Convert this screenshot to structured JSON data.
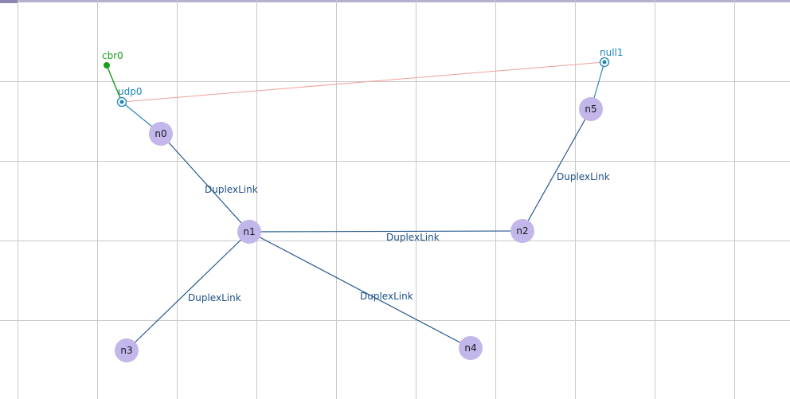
{
  "nodes": [
    {
      "id": "n0",
      "label": "n0"
    },
    {
      "id": "n1",
      "label": "n1"
    },
    {
      "id": "n2",
      "label": "n2"
    },
    {
      "id": "n3",
      "label": "n3"
    },
    {
      "id": "n4",
      "label": "n4"
    },
    {
      "id": "n5",
      "label": "n5"
    }
  ],
  "links": [
    {
      "from": "n0",
      "to": "n1",
      "label": "DuplexLink"
    },
    {
      "from": "n1",
      "to": "n2",
      "label": "DuplexLink"
    },
    {
      "from": "n1",
      "to": "n3",
      "label": "DuplexLink"
    },
    {
      "from": "n1",
      "to": "n4",
      "label": "DuplexLink"
    },
    {
      "from": "n2",
      "to": "n5",
      "label": "DuplexLink"
    }
  ],
  "agents": [
    {
      "id": "udp0",
      "label": "udp0",
      "attached_to": "n0"
    },
    {
      "id": "null1",
      "label": "null1",
      "attached_to": "n5"
    }
  ],
  "applications": [
    {
      "id": "cbr0",
      "label": "cbr0",
      "attached_to": "udp0"
    }
  ],
  "connections": [
    {
      "from": "udp0",
      "to": "null1"
    }
  ],
  "colors": {
    "node": "#c2b6ea",
    "link": "#24578f",
    "agent": "#1f86b8",
    "application": "#18a018",
    "connection": "#f0a098",
    "grid": "#c9c9c9"
  }
}
